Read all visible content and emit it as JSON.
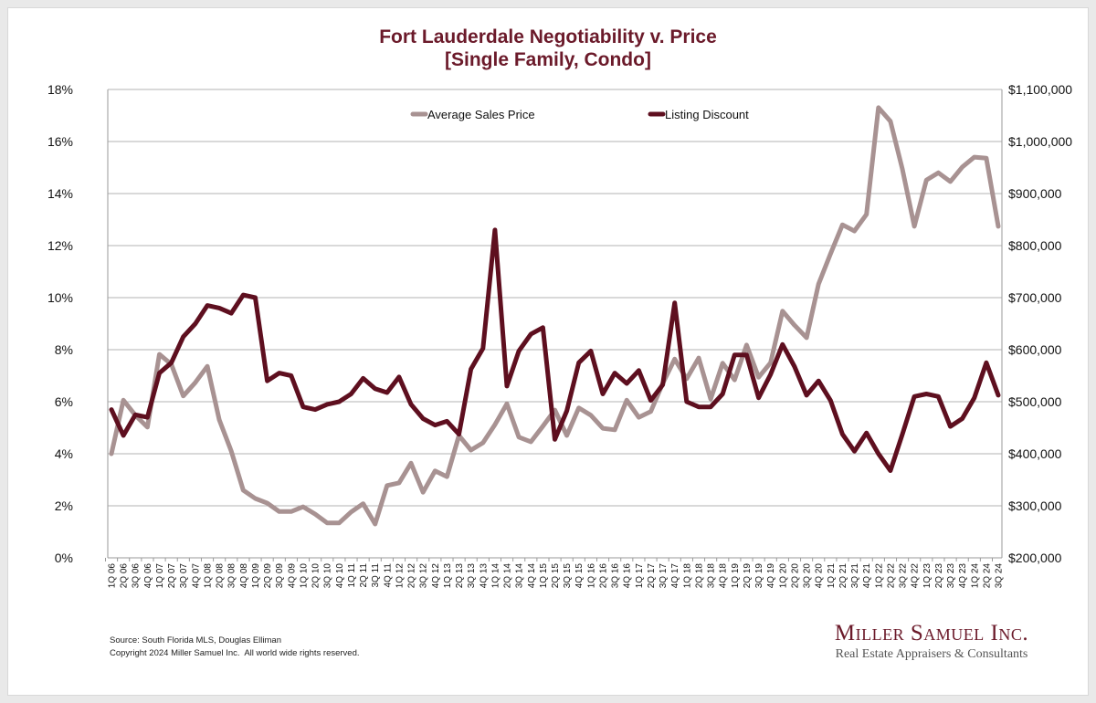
{
  "chart_data": {
    "type": "line",
    "title": "Fort Lauderdale Negotiability v. Price",
    "subtitle": "[Single Family, Condo]",
    "xlabel": "",
    "ylabel_left": "",
    "ylabel_right": "",
    "legend_position": "top-center",
    "grid": true,
    "y_left": {
      "min": 0,
      "max": 18,
      "step": 2,
      "ticks": [
        "0%",
        "2%",
        "4%",
        "6%",
        "8%",
        "10%",
        "12%",
        "14%",
        "16%",
        "18%"
      ]
    },
    "y_right": {
      "min": 200000,
      "max": 1100000,
      "step": 100000,
      "ticks": [
        "$200,000",
        "$300,000",
        "$400,000",
        "$500,000",
        "$600,000",
        "$700,000",
        "$800,000",
        "$900,000",
        "$1,000,000",
        "$1,100,000"
      ]
    },
    "categories": [
      "1Q 06",
      "2Q 06",
      "3Q 06",
      "4Q 06",
      "1Q 07",
      "2Q 07",
      "3Q 07",
      "4Q 07",
      "1Q 08",
      "2Q 08",
      "3Q 08",
      "4Q 08",
      "1Q 09",
      "2Q 09",
      "3Q 09",
      "4Q 09",
      "1Q 10",
      "2Q 10",
      "3Q 10",
      "4Q 10",
      "1Q 11",
      "2Q 11",
      "3Q 11",
      "4Q 11",
      "1Q 12",
      "2Q 12",
      "3Q 12",
      "4Q 12",
      "1Q 13",
      "2Q 13",
      "3Q 13",
      "4Q 13",
      "1Q 14",
      "2Q 14",
      "3Q 14",
      "4Q 14",
      "1Q 15",
      "2Q 15",
      "3Q 15",
      "4Q 15",
      "1Q 16",
      "2Q 16",
      "3Q 16",
      "4Q 16",
      "1Q 17",
      "2Q 17",
      "3Q 17",
      "4Q 17",
      "1Q 18",
      "2Q 18",
      "3Q 18",
      "4Q 18",
      "1Q 19",
      "2Q 19",
      "3Q 19",
      "4Q 19",
      "1Q 20",
      "2Q 20",
      "3Q 20",
      "4Q 20",
      "1Q 21",
      "2Q 21",
      "3Q 21",
      "4Q 21",
      "1Q 22",
      "2Q 22",
      "3Q 22",
      "4Q 22",
      "1Q 23",
      "2Q 23",
      "3Q 23",
      "4Q 23",
      "1Q 24",
      "2Q 24",
      "3Q 24"
    ],
    "series": [
      {
        "name": "Average Sales Price",
        "axis": "right",
        "color": "#a89292",
        "values": [
          400000,
          503000,
          474000,
          451000,
          591000,
          572000,
          511000,
          537000,
          568000,
          465000,
          405000,
          330000,
          314000,
          305000,
          289000,
          289000,
          298000,
          284000,
          267000,
          267000,
          288000,
          304000,
          265000,
          339000,
          344000,
          382000,
          326000,
          367000,
          356000,
          435000,
          407000,
          421000,
          456000,
          496000,
          432000,
          423000,
          453000,
          484000,
          435000,
          488000,
          474000,
          449000,
          446000,
          503000,
          470000,
          481000,
          535000,
          582000,
          544000,
          584000,
          505000,
          574000,
          542000,
          609000,
          547000,
          575000,
          674000,
          647000,
          623000,
          726000,
          784000,
          840000,
          828000,
          860000,
          1065000,
          1039000,
          947000,
          837000,
          926000,
          940000,
          923000,
          951000,
          970000,
          968000,
          837000
        ]
      },
      {
        "name": "Listing Discount",
        "axis": "left",
        "color": "#5e0f1f",
        "values": [
          5.7,
          4.7,
          5.5,
          5.4,
          7.1,
          7.5,
          8.5,
          9.0,
          9.7,
          9.6,
          9.4,
          10.1,
          10.0,
          6.8,
          7.1,
          7.0,
          5.8,
          5.7,
          5.9,
          6.0,
          6.3,
          6.9,
          6.5,
          6.35,
          6.95,
          5.9,
          5.35,
          5.1,
          5.25,
          4.75,
          7.25,
          8.05,
          12.6,
          6.6,
          7.95,
          8.6,
          8.85,
          4.55,
          5.65,
          7.5,
          7.95,
          6.3,
          7.1,
          6.7,
          7.2,
          6.05,
          6.65,
          9.8,
          6.0,
          5.8,
          5.8,
          6.3,
          7.8,
          7.8,
          6.15,
          7.05,
          8.2,
          7.35,
          6.25,
          6.8,
          6.05,
          4.75,
          4.1,
          4.8,
          4.0,
          3.35,
          4.75,
          6.2,
          6.3,
          6.2,
          5.05,
          5.35,
          6.15,
          7.5,
          6.25
        ]
      }
    ]
  },
  "footer": {
    "source": "Source: South Florida MLS, Douglas Elliman",
    "copyright": "Copyright 2024 Miller Samuel Inc.  All world wide rights reserved."
  },
  "logo": {
    "name": "Miller Samuel Inc.",
    "tagline": "Real Estate Appraisers & Consultants"
  }
}
